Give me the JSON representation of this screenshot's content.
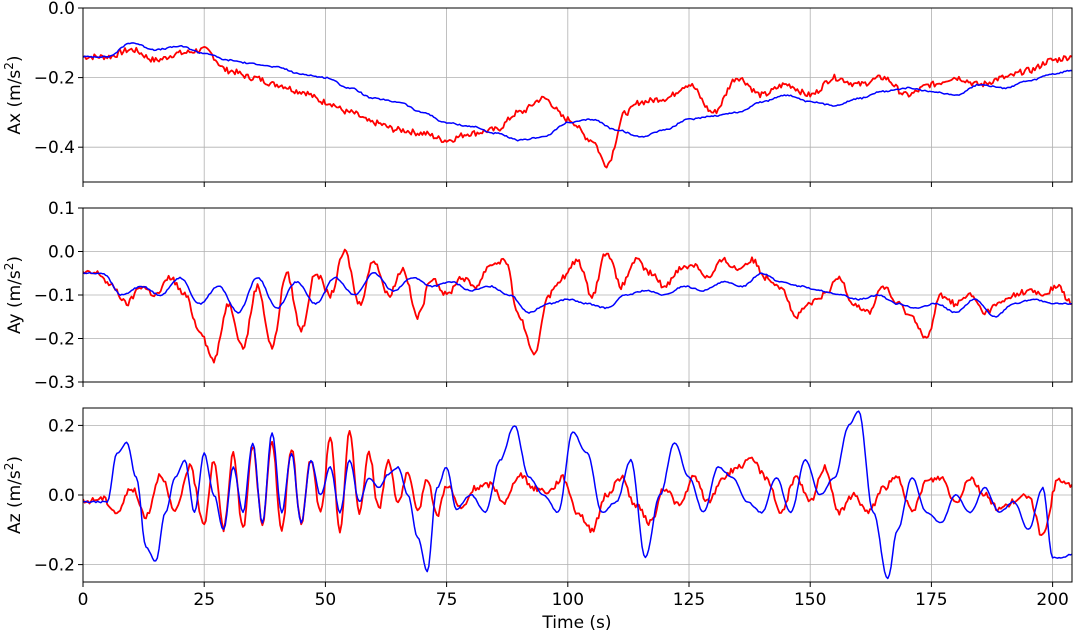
{
  "chart_data": {
    "type": "line",
    "xlabel": "Time (s)",
    "xlim": [
      0,
      204
    ],
    "x_ticks": [
      0,
      25,
      50,
      75,
      100,
      125,
      150,
      175,
      200
    ],
    "grid": true,
    "colors": {
      "series_a": "#ff0000",
      "series_b": "#0000ff",
      "grid": "#b0b0b0"
    },
    "panels": [
      {
        "ylabel": "Ax (m/s",
        "ylabel_sup": "2",
        "ylabel_end": ")",
        "ylim": [
          -0.5,
          0.0
        ],
        "y_ticks": [
          0.0,
          -0.2,
          -0.4
        ],
        "y_tick_labels": [
          "0.0",
          "−0.2",
          "−0.4"
        ],
        "series": [
          {
            "color": "#ff0000",
            "x": [
              0,
              5,
              10,
              15,
              20,
              25,
              30,
              35,
              40,
              45,
              50,
              55,
              60,
              65,
              70,
              75,
              80,
              85,
              90,
              95,
              100,
              105,
              108,
              112,
              115,
              120,
              125,
              130,
              135,
              140,
              145,
              150,
              155,
              160,
              165,
              170,
              175,
              180,
              185,
              190,
              195,
              200,
              204
            ],
            "y": [
              -0.14,
              -0.14,
              -0.12,
              -0.15,
              -0.13,
              -0.12,
              -0.18,
              -0.2,
              -0.22,
              -0.24,
              -0.27,
              -0.3,
              -0.33,
              -0.35,
              -0.36,
              -0.38,
              -0.36,
              -0.35,
              -0.3,
              -0.26,
              -0.32,
              -0.38,
              -0.45,
              -0.3,
              -0.27,
              -0.26,
              -0.22,
              -0.3,
              -0.2,
              -0.25,
              -0.22,
              -0.25,
              -0.2,
              -0.22,
              -0.2,
              -0.25,
              -0.22,
              -0.2,
              -0.22,
              -0.2,
              -0.18,
              -0.15,
              -0.14
            ]
          },
          {
            "color": "#0000ff",
            "x": [
              0,
              5,
              10,
              15,
              20,
              25,
              30,
              35,
              40,
              45,
              50,
              55,
              60,
              65,
              70,
              75,
              80,
              85,
              90,
              95,
              100,
              105,
              110,
              115,
              120,
              125,
              130,
              135,
              140,
              145,
              150,
              155,
              160,
              165,
              170,
              175,
              180,
              185,
              190,
              195,
              200,
              204
            ],
            "y": [
              -0.14,
              -0.14,
              -0.1,
              -0.12,
              -0.11,
              -0.13,
              -0.15,
              -0.16,
              -0.17,
              -0.19,
              -0.2,
              -0.23,
              -0.26,
              -0.27,
              -0.3,
              -0.33,
              -0.34,
              -0.36,
              -0.38,
              -0.37,
              -0.33,
              -0.32,
              -0.35,
              -0.37,
              -0.35,
              -0.32,
              -0.31,
              -0.3,
              -0.27,
              -0.25,
              -0.27,
              -0.28,
              -0.26,
              -0.24,
              -0.23,
              -0.24,
              -0.25,
              -0.22,
              -0.23,
              -0.21,
              -0.19,
              -0.18
            ]
          }
        ]
      },
      {
        "ylabel": "Ay (m/s",
        "ylabel_sup": "2",
        "ylabel_end": ")",
        "ylim": [
          -0.3,
          0.1
        ],
        "y_ticks": [
          0.1,
          0.0,
          -0.1,
          -0.2,
          -0.3
        ],
        "y_tick_labels": [
          "0.1",
          "0.0",
          "−0.1",
          "−0.2",
          "−0.3"
        ],
        "series": [
          {
            "color": "#ff0000",
            "x": [
              0,
              3,
              6,
              9,
              12,
              15,
              18,
              21,
              24,
              27,
              30,
              33,
              36,
              39,
              42,
              45,
              48,
              51,
              54,
              57,
              60,
              63,
              66,
              69,
              72,
              75,
              78,
              81,
              84,
              87,
              90,
              93,
              96,
              99,
              102,
              105,
              108,
              111,
              114,
              117,
              120,
              123,
              126,
              129,
              132,
              135,
              138,
              141,
              144,
              147,
              150,
              153,
              156,
              159,
              162,
              165,
              168,
              171,
              174,
              177,
              180,
              183,
              186,
              189,
              192,
              195,
              198,
              201,
              204
            ],
            "y": [
              -0.05,
              -0.05,
              -0.08,
              -0.12,
              -0.08,
              -0.1,
              -0.06,
              -0.1,
              -0.18,
              -0.25,
              -0.12,
              -0.22,
              -0.08,
              -0.22,
              -0.05,
              -0.18,
              -0.05,
              -0.1,
              -0.0,
              -0.12,
              -0.02,
              -0.1,
              -0.04,
              -0.15,
              -0.06,
              -0.1,
              -0.06,
              -0.08,
              -0.03,
              -0.02,
              -0.15,
              -0.24,
              -0.1,
              -0.06,
              -0.02,
              -0.1,
              -0.0,
              -0.08,
              -0.02,
              -0.05,
              -0.08,
              -0.04,
              -0.03,
              -0.06,
              -0.02,
              -0.04,
              -0.02,
              -0.06,
              -0.08,
              -0.15,
              -0.12,
              -0.1,
              -0.06,
              -0.12,
              -0.14,
              -0.08,
              -0.12,
              -0.15,
              -0.2,
              -0.1,
              -0.12,
              -0.1,
              -0.14,
              -0.12,
              -0.1,
              -0.09,
              -0.1,
              -0.08,
              -0.12
            ]
          },
          {
            "color": "#0000ff",
            "x": [
              0,
              4,
              8,
              12,
              16,
              20,
              24,
              28,
              32,
              36,
              40,
              44,
              48,
              52,
              56,
              60,
              64,
              68,
              72,
              76,
              80,
              84,
              88,
              92,
              96,
              100,
              104,
              108,
              112,
              116,
              120,
              124,
              128,
              132,
              136,
              140,
              144,
              148,
              152,
              156,
              160,
              164,
              168,
              172,
              176,
              180,
              184,
              188,
              192,
              196,
              200,
              204
            ],
            "y": [
              -0.05,
              -0.05,
              -0.1,
              -0.08,
              -0.1,
              -0.06,
              -0.12,
              -0.08,
              -0.14,
              -0.06,
              -0.13,
              -0.07,
              -0.12,
              -0.06,
              -0.1,
              -0.05,
              -0.09,
              -0.06,
              -0.08,
              -0.07,
              -0.09,
              -0.08,
              -0.1,
              -0.14,
              -0.12,
              -0.11,
              -0.12,
              -0.13,
              -0.1,
              -0.09,
              -0.1,
              -0.08,
              -0.09,
              -0.07,
              -0.08,
              -0.05,
              -0.07,
              -0.08,
              -0.09,
              -0.1,
              -0.11,
              -0.1,
              -0.12,
              -0.13,
              -0.12,
              -0.14,
              -0.11,
              -0.15,
              -0.12,
              -0.11,
              -0.12,
              -0.12
            ]
          }
        ]
      },
      {
        "ylabel": "Az (m/s",
        "ylabel_sup": "2",
        "ylabel_end": ")",
        "ylim": [
          -0.25,
          0.25
        ],
        "y_ticks": [
          0.2,
          0.0,
          -0.2
        ],
        "y_tick_labels": [
          "0.2",
          "0.0",
          "−0.2"
        ],
        "series": [
          {
            "color": "#ff0000",
            "x": [
              0,
              4,
              7,
              10,
              13,
              16,
              19,
              22,
              25,
              27,
              29,
              31,
              33,
              35,
              37,
              39,
              41,
              43,
              45,
              47,
              49,
              51,
              53,
              55,
              57,
              59,
              61,
              63,
              65,
              67,
              69,
              71,
              73,
              75,
              78,
              81,
              84,
              87,
              90,
              93,
              96,
              99,
              102,
              105,
              108,
              111,
              114,
              117,
              120,
              123,
              126,
              129,
              132,
              135,
              138,
              141,
              144,
              147,
              150,
              153,
              156,
              159,
              162,
              165,
              168,
              171,
              174,
              177,
              180,
              183,
              186,
              189,
              192,
              195,
              198,
              201,
              204
            ],
            "y": [
              -0.02,
              -0.01,
              -0.05,
              0.02,
              -0.06,
              0.06,
              -0.05,
              0.08,
              -0.08,
              0.1,
              -0.1,
              0.12,
              -0.1,
              0.14,
              -0.08,
              0.15,
              -0.1,
              0.13,
              -0.08,
              0.1,
              -0.05,
              0.16,
              -0.1,
              0.18,
              -0.05,
              0.12,
              -0.04,
              0.1,
              -0.02,
              0.06,
              -0.05,
              0.05,
              -0.06,
              0.03,
              -0.04,
              0.02,
              0.03,
              -0.02,
              0.06,
              0.02,
              0.01,
              0.05,
              -0.05,
              -0.1,
              0.0,
              0.05,
              -0.03,
              -0.08,
              0.02,
              -0.03,
              0.05,
              -0.02,
              0.05,
              0.08,
              0.1,
              0.05,
              -0.05,
              0.05,
              -0.02,
              0.08,
              -0.05,
              0.0,
              -0.05,
              0.02,
              0.05,
              -0.05,
              0.04,
              0.05,
              -0.02,
              0.05,
              0.0,
              -0.04,
              -0.02,
              0.0,
              -0.12,
              0.04,
              0.03
            ]
          },
          {
            "color": "#0000ff",
            "x": [
              0,
              5,
              7,
              9,
              11,
              13,
              15,
              17,
              19,
              21,
              23,
              25,
              27,
              29,
              31,
              33,
              35,
              37,
              39,
              41,
              43,
              45,
              47,
              49,
              51,
              53,
              55,
              57,
              59,
              61,
              63,
              65,
              67,
              69,
              71,
              73,
              75,
              77,
              80,
              83,
              86,
              89,
              92,
              95,
              98,
              101,
              104,
              107,
              110,
              113,
              116,
              119,
              122,
              125,
              128,
              131,
              134,
              137,
              140,
              143,
              146,
              149,
              152,
              155,
              158,
              160,
              163,
              166,
              168,
              171,
              174,
              177,
              180,
              183,
              186,
              189,
              192,
              195,
              198,
              200,
              202,
              204
            ],
            "y": [
              -0.02,
              -0.02,
              0.12,
              0.15,
              0.05,
              -0.15,
              -0.19,
              -0.05,
              0.05,
              0.1,
              -0.05,
              0.12,
              0.0,
              -0.1,
              0.08,
              -0.05,
              0.15,
              -0.08,
              0.18,
              -0.05,
              0.12,
              -0.08,
              0.1,
              0.0,
              0.08,
              -0.05,
              0.1,
              -0.02,
              0.05,
              0.02,
              0.06,
              0.08,
              0.0,
              -0.12,
              -0.22,
              0.02,
              0.08,
              -0.04,
              0.0,
              -0.05,
              0.1,
              0.2,
              0.05,
              0.0,
              -0.05,
              0.18,
              0.12,
              -0.05,
              -0.02,
              0.1,
              -0.18,
              0.0,
              0.15,
              0.05,
              -0.05,
              0.08,
              0.05,
              -0.02,
              -0.05,
              0.05,
              -0.05,
              0.1,
              0.0,
              0.05,
              0.2,
              0.24,
              -0.05,
              -0.24,
              -0.1,
              0.05,
              -0.05,
              -0.08,
              0.0,
              -0.05,
              0.02,
              -0.05,
              -0.02,
              -0.1,
              0.02,
              -0.18,
              -0.18,
              -0.17
            ]
          }
        ]
      }
    ]
  }
}
